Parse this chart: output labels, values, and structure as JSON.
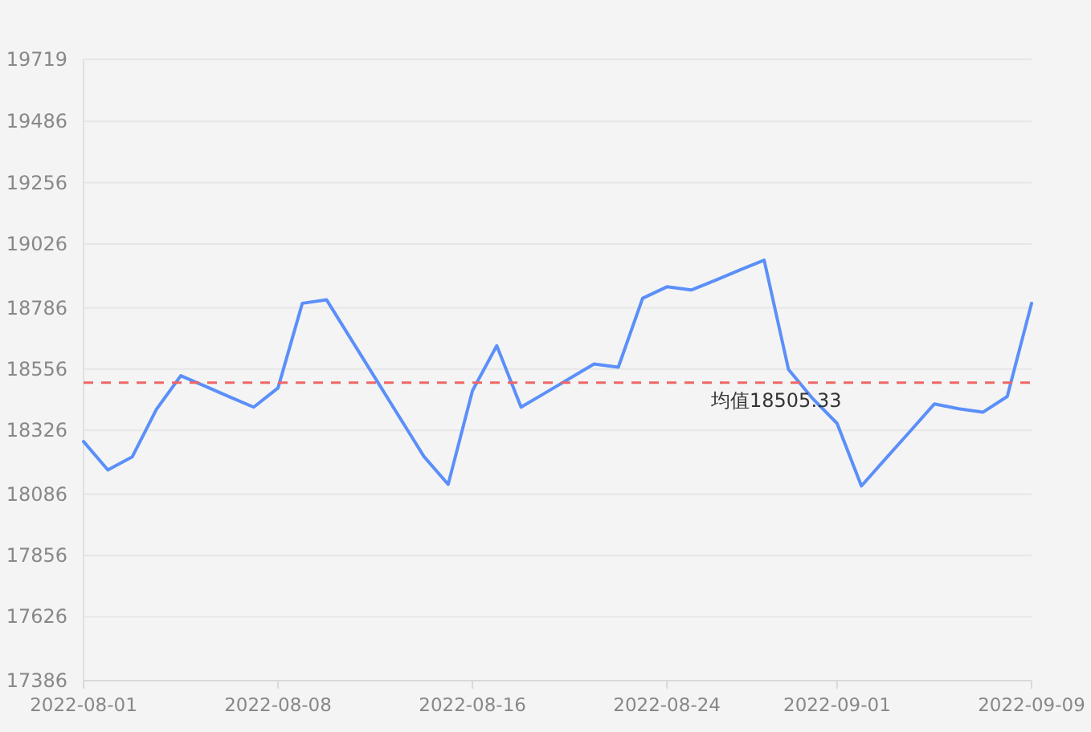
{
  "chart_data": {
    "type": "line",
    "categories": [
      "2022-08-01",
      null,
      null,
      null,
      null,
      null,
      null,
      null,
      "2022-08-08",
      null,
      null,
      null,
      null,
      null,
      null,
      null,
      "2022-08-16",
      null,
      null,
      null,
      null,
      null,
      null,
      null,
      "2022-08-24",
      null,
      null,
      null,
      null,
      null,
      null,
      "2022-09-01",
      null,
      null,
      null,
      null,
      null,
      null,
      null,
      "2022-09-09"
    ],
    "values": [
      18284,
      18177,
      18226,
      18405,
      18531,
      18492,
      18452,
      18413,
      18485,
      18803,
      18816,
      18669,
      18522,
      18375,
      18228,
      18123,
      18475,
      18644,
      18413,
      18467,
      18521,
      18575,
      18563,
      18822,
      18865,
      18853,
      18890,
      18928,
      18965,
      18555,
      18445,
      18352,
      18117,
      18220,
      18322,
      18425,
      18407,
      18394,
      18453,
      18803
    ],
    "color": "#5b8ff9",
    "ylim": [
      17386,
      19719
    ],
    "yticks": [
      17386,
      17626,
      17856,
      18086,
      18326,
      18556,
      18786,
      19026,
      19256,
      19486,
      19719
    ],
    "grid": "y",
    "marker": "none",
    "line_style": "solid",
    "ref_lines": [
      {
        "axis": "y",
        "value": 18505.33,
        "label": "均值18505.33",
        "color": "#ee6666",
        "line_style": "dashed"
      }
    ]
  }
}
